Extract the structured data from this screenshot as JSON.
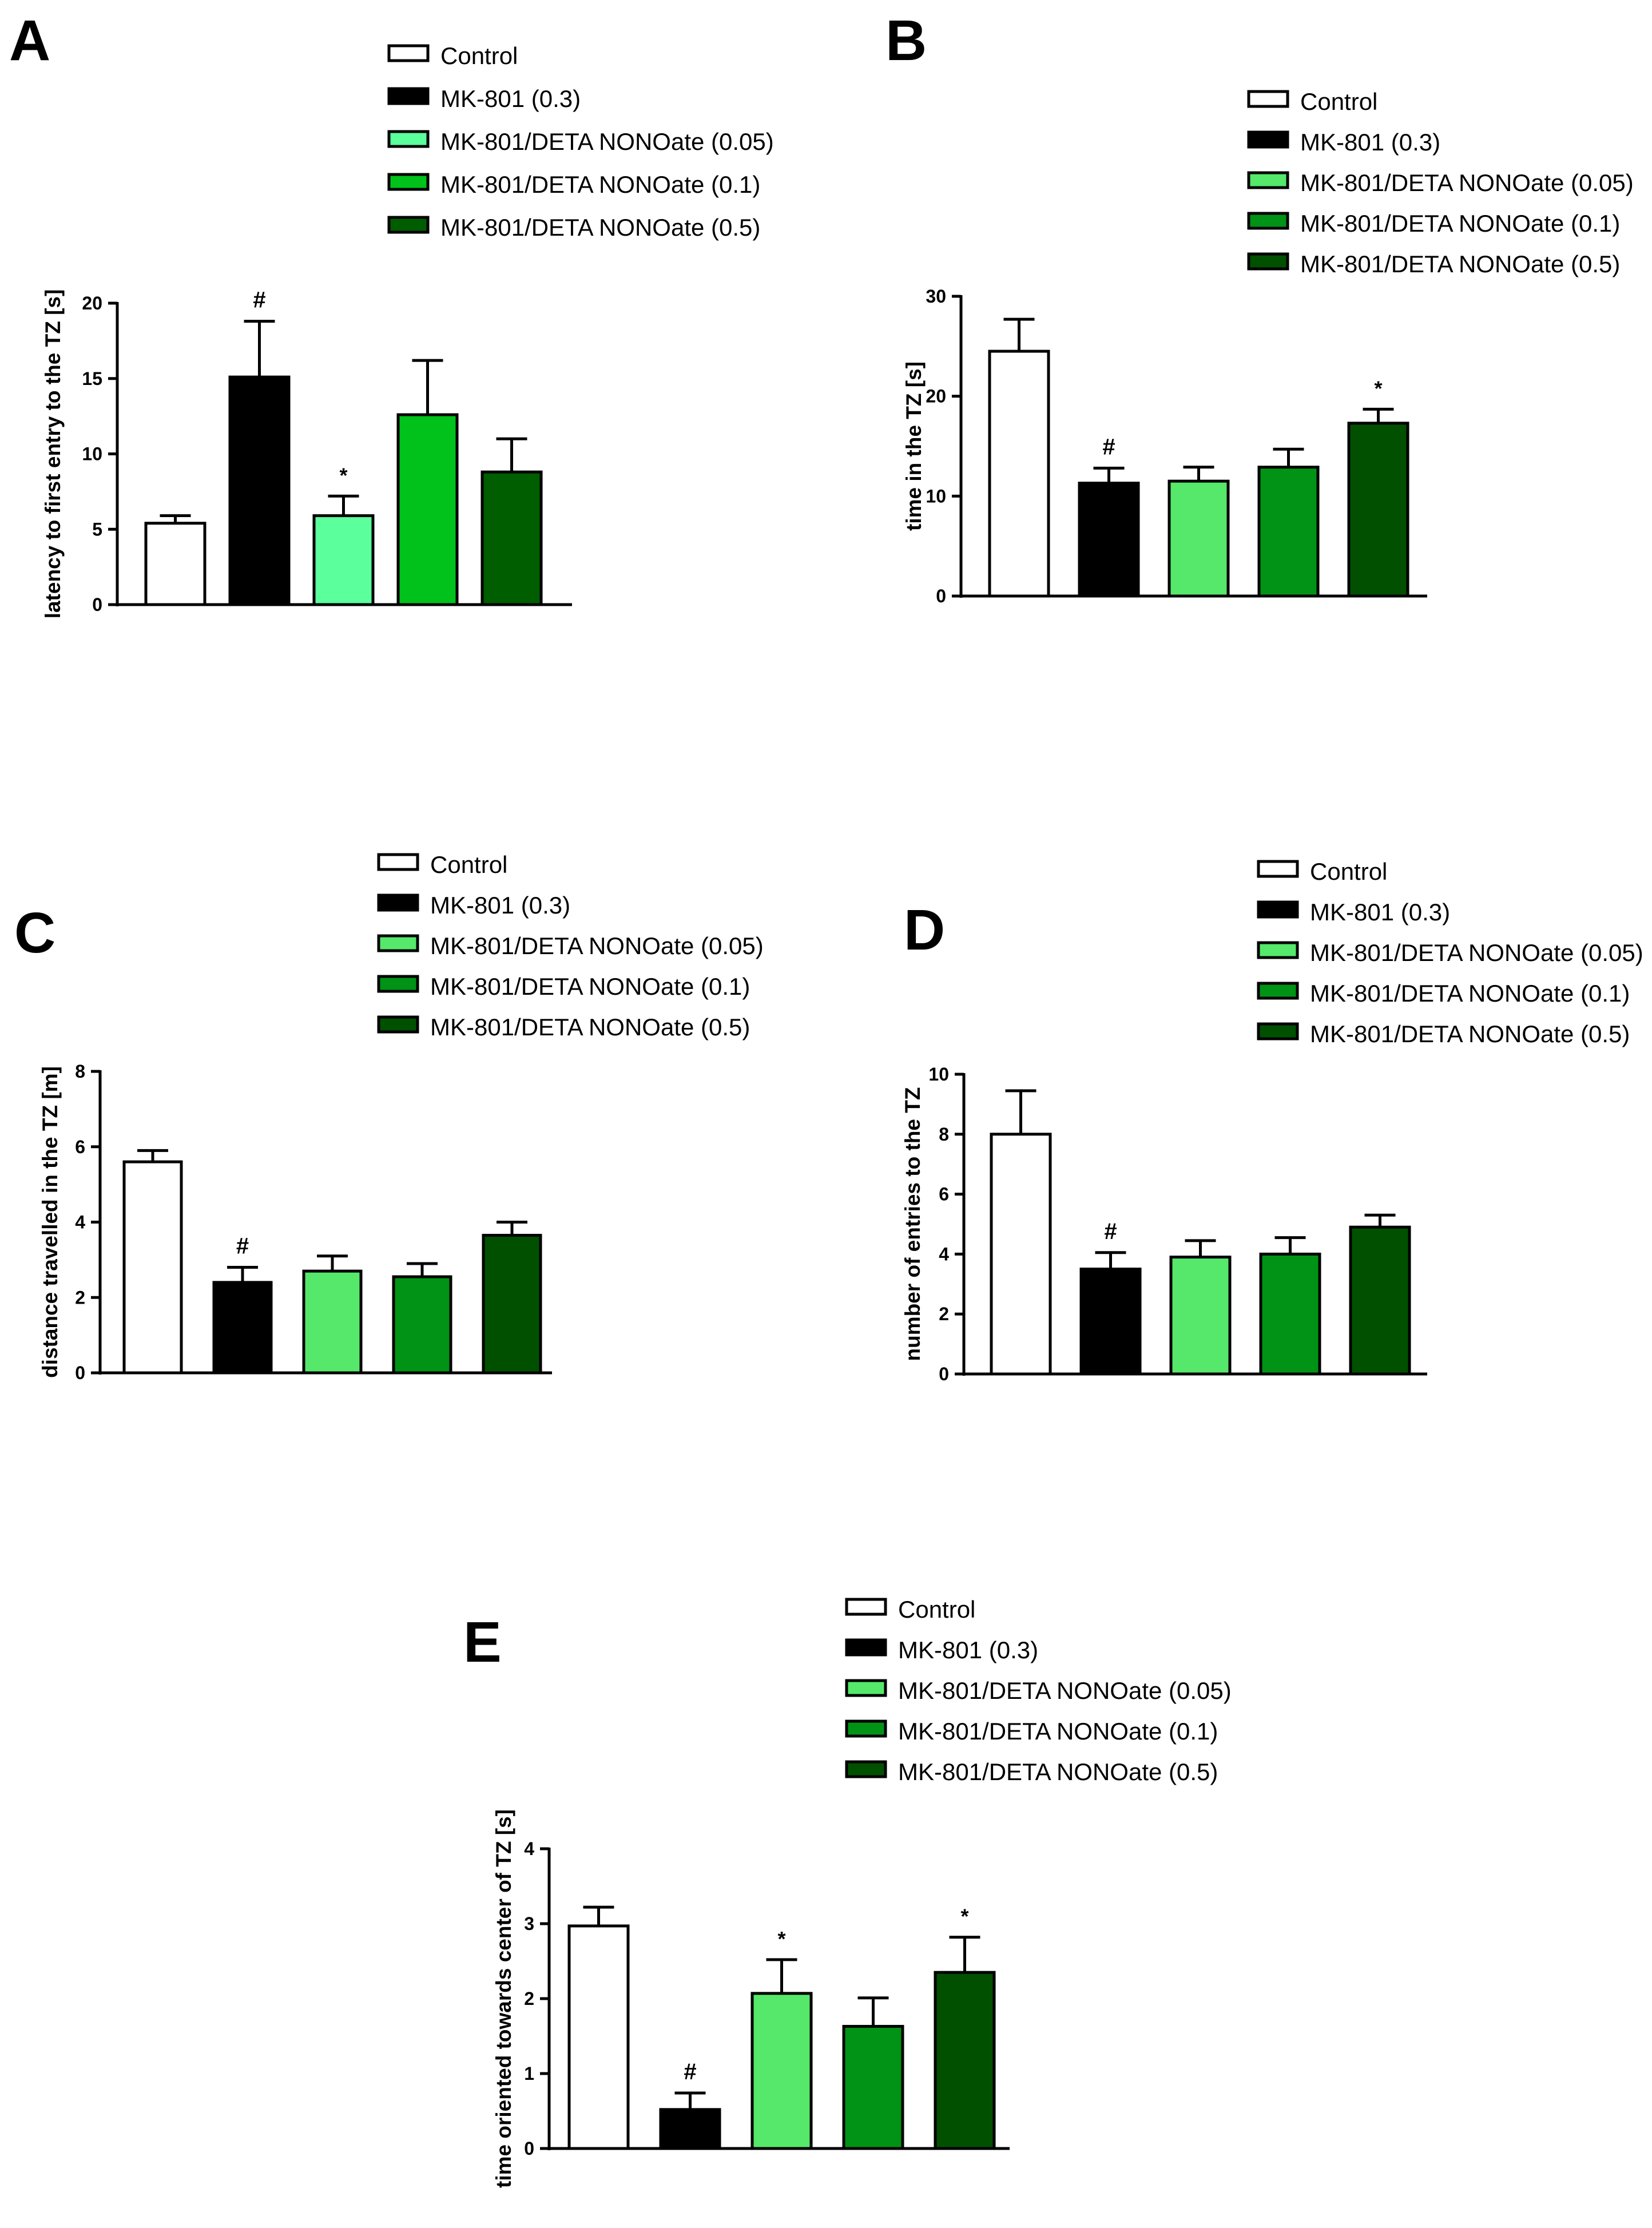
{
  "figure": {
    "groups": [
      "Control",
      "MK-801 (0.3)",
      "MK-801/DETA NONOate (0.05)",
      "MK-801/DETA NONOate (0.1)",
      "MK-801/DETA NONOate (0.5)"
    ]
  },
  "chart_data": [
    {
      "panel": "A",
      "type": "bar",
      "categories": [
        "Control",
        "MK-801 (0.3)",
        "MK-801/DETA NONOate (0.05)",
        "MK-801/DETA NONOate (0.1)",
        "MK-801/DETA NONOate (0.5)"
      ],
      "values": [
        5.4,
        15.1,
        5.9,
        12.6,
        8.8
      ],
      "errors": [
        0.5,
        3.7,
        1.3,
        3.6,
        2.2
      ],
      "colors": [
        "#ffffff",
        "#000000",
        "#5bff9b",
        "#00c21b",
        "#005d00"
      ],
      "significance": [
        "",
        "#",
        "*",
        "",
        ""
      ],
      "ylabel": "latency to first entry to the TZ [s]",
      "ylim": [
        0,
        20
      ],
      "yticks": [
        0,
        5,
        10,
        15,
        20
      ],
      "legend": [
        "Control",
        "MK-801 (0.3)",
        "MK-801/DETA NONOate (0.05)",
        "MK-801/DETA NONOate (0.1)",
        "MK-801/DETA NONOate (0.5)"
      ]
    },
    {
      "panel": "B",
      "type": "bar",
      "categories": [
        "Control",
        "MK-801 (0.3)",
        "MK-801/DETA NONOate (0.05)",
        "MK-801/DETA NONOate (0.1)",
        "MK-801/DETA NONOate (0.5)"
      ],
      "values": [
        24.5,
        11.3,
        11.5,
        12.9,
        17.3
      ],
      "errors": [
        3.2,
        1.5,
        1.4,
        1.8,
        1.4
      ],
      "colors": [
        "#ffffff",
        "#000000",
        "#55e86a",
        "#009315",
        "#005000"
      ],
      "significance": [
        "",
        "#",
        "",
        "",
        "*"
      ],
      "ylabel": "time in the TZ [s]",
      "ylim": [
        0,
        30
      ],
      "yticks": [
        0,
        10,
        20,
        30
      ],
      "legend": [
        "Control",
        "MK-801 (0.3)",
        "MK-801/DETA NONOate (0.05)",
        "MK-801/DETA NONOate (0.1)",
        "MK-801/DETA NONOate (0.5)"
      ]
    },
    {
      "panel": "C",
      "type": "bar",
      "categories": [
        "Control",
        "MK-801 (0.3)",
        "MK-801/DETA NONOate (0.05)",
        "MK-801/DETA NONOate (0.1)",
        "MK-801/DETA NONOate (0.5)"
      ],
      "values": [
        5.6,
        2.4,
        2.7,
        2.55,
        3.65
      ],
      "errors": [
        0.3,
        0.4,
        0.4,
        0.35,
        0.35
      ],
      "colors": [
        "#ffffff",
        "#000000",
        "#55e86a",
        "#009315",
        "#005000"
      ],
      "significance": [
        "",
        "#",
        "",
        "",
        ""
      ],
      "ylabel": "distance travelled in the TZ [m]",
      "ylim": [
        0,
        8
      ],
      "yticks": [
        0,
        2,
        4,
        6,
        8
      ],
      "legend": [
        "Control",
        "MK-801 (0.3)",
        "MK-801/DETA NONOate (0.05)",
        "MK-801/DETA NONOate (0.1)",
        "MK-801/DETA NONOate (0.5)"
      ]
    },
    {
      "panel": "D",
      "type": "bar",
      "categories": [
        "Control",
        "MK-801 (0.3)",
        "MK-801/DETA NONOate (0.05)",
        "MK-801/DETA NONOate (0.1)",
        "MK-801/DETA NONOate (0.5)"
      ],
      "values": [
        8.0,
        3.5,
        3.9,
        4.0,
        4.9
      ],
      "errors": [
        1.45,
        0.55,
        0.55,
        0.55,
        0.4
      ],
      "colors": [
        "#ffffff",
        "#000000",
        "#55e86a",
        "#009315",
        "#005000"
      ],
      "significance": [
        "",
        "#",
        "",
        "",
        ""
      ],
      "ylabel": "number of entries to the TZ",
      "ylim": [
        0,
        10
      ],
      "yticks": [
        0,
        2,
        4,
        6,
        8,
        10
      ],
      "legend": [
        "Control",
        "MK-801 (0.3)",
        "MK-801/DETA NONOate (0.05)",
        "MK-801/DETA NONOate (0.1)",
        "MK-801/DETA NONOate (0.5)"
      ]
    },
    {
      "panel": "E",
      "type": "bar",
      "categories": [
        "Control",
        "MK-801 (0.3)",
        "MK-801/DETA NONOate (0.05)",
        "MK-801/DETA NONOate (0.1)",
        "MK-801/DETA NONOate (0.5)"
      ],
      "values": [
        2.97,
        0.52,
        2.07,
        1.63,
        2.35
      ],
      "errors": [
        0.25,
        0.22,
        0.45,
        0.38,
        0.47
      ],
      "colors": [
        "#ffffff",
        "#000000",
        "#55e86a",
        "#009315",
        "#005000"
      ],
      "significance": [
        "",
        "#",
        "*",
        "",
        "*"
      ],
      "ylabel": "time oriented towards center of TZ [s]",
      "ylim": [
        0,
        4
      ],
      "yticks": [
        0,
        1,
        2,
        3,
        4
      ],
      "legend": [
        "Control",
        "MK-801 (0.3)",
        "MK-801/DETA NONOate (0.05)",
        "MK-801/DETA NONOate (0.1)",
        "MK-801/DETA NONOate (0.5)"
      ]
    }
  ]
}
